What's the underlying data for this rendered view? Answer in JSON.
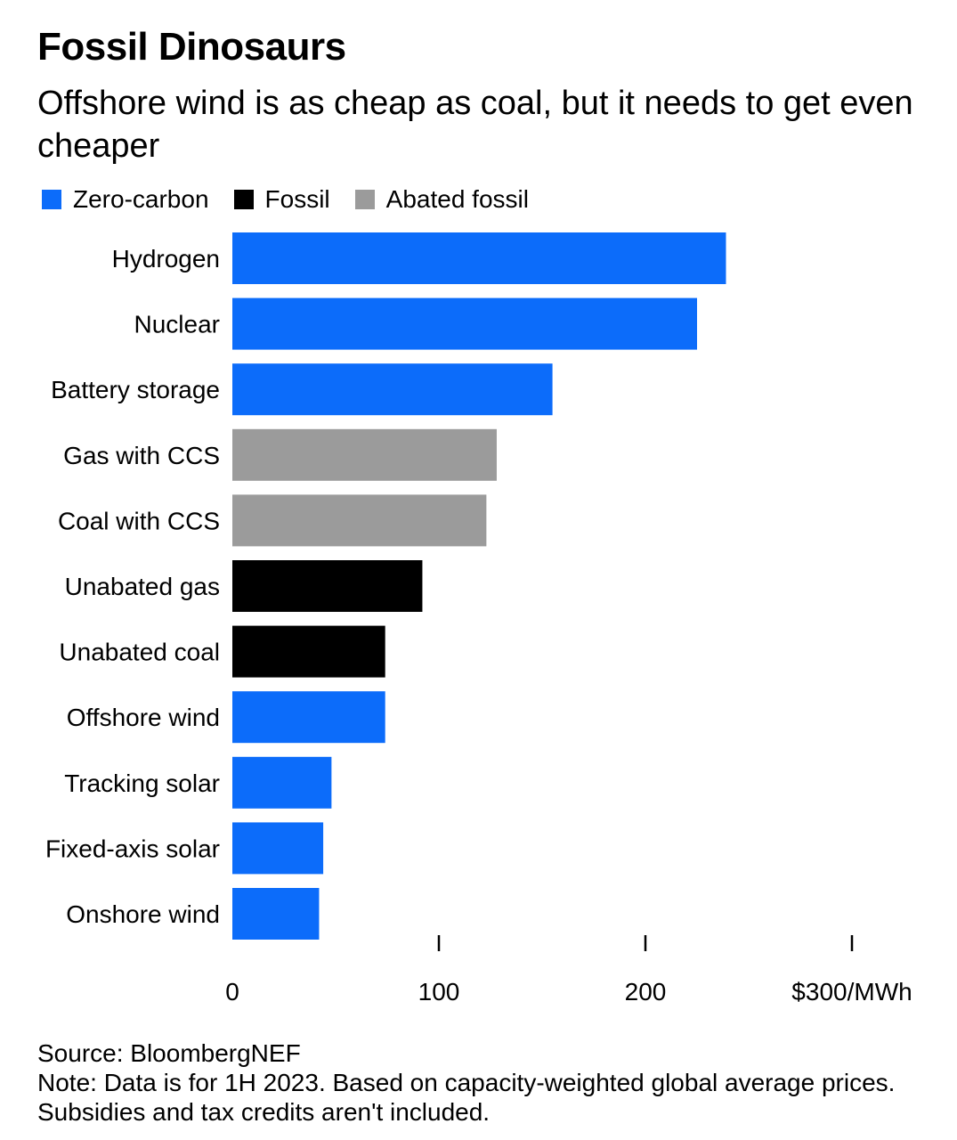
{
  "title": "Fossil Dinosaurs",
  "subtitle": "Offshore wind is as cheap as coal, but it needs to get even cheaper",
  "legend": [
    {
      "label": "Zero-carbon",
      "color": "#0c6cfa"
    },
    {
      "label": "Fossil",
      "color": "#000000"
    },
    {
      "label": "Abated fossil",
      "color": "#9b9b9b"
    }
  ],
  "chart_data": {
    "type": "bar",
    "orientation": "horizontal",
    "categories": [
      "Hydrogen",
      "Nuclear",
      "Battery storage",
      "Gas with CCS",
      "Coal with CCS",
      "Unabated gas",
      "Unabated coal",
      "Offshore wind",
      "Tracking solar",
      "Fixed-axis solar",
      "Onshore wind"
    ],
    "values": [
      239,
      225,
      155,
      128,
      123,
      92,
      74,
      74,
      48,
      44,
      42
    ],
    "groups": [
      "Zero-carbon",
      "Zero-carbon",
      "Zero-carbon",
      "Abated fossil",
      "Abated fossil",
      "Fossil",
      "Fossil",
      "Zero-carbon",
      "Zero-carbon",
      "Zero-carbon",
      "Zero-carbon"
    ],
    "xlim": [
      0,
      300
    ],
    "xticks": [
      0,
      100,
      200,
      300
    ],
    "xtick_labels": [
      "0",
      "100",
      "200",
      "$300/MWh"
    ],
    "grid": false,
    "legend_position": "top-left"
  },
  "source": "Source: BloombergNEF",
  "note": "Note: Data is for 1H 2023. Based on capacity-weighted global average prices. Subsidies and tax credits aren't included."
}
